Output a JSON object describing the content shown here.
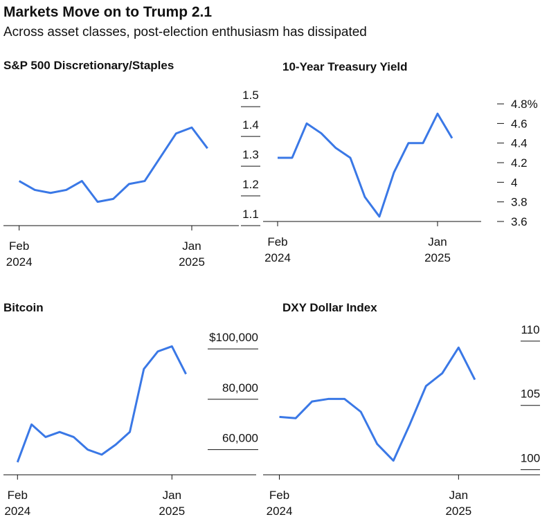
{
  "title": "Markets Move on to Trump 2.1",
  "subtitle": "Across asset classes, post-election enthusiasm has dissipated",
  "chart_data": [
    {
      "type": "line",
      "title": "S&P 500 Discretionary/Staples",
      "color": "#3a78e6",
      "x": [
        "2024-02",
        "2024-03",
        "2024-04",
        "2024-05",
        "2024-06",
        "2024-07",
        "2024-08",
        "2024-09",
        "2024-10",
        "2024-11",
        "2024-12",
        "2025-01",
        "2025-02"
      ],
      "values": [
        1.25,
        1.22,
        1.21,
        1.22,
        1.25,
        1.18,
        1.19,
        1.24,
        1.25,
        1.33,
        1.41,
        1.43,
        1.36
      ],
      "xlim": [
        "2024-01",
        "2025-04"
      ],
      "xticks": [
        {
          "value": "2024-02",
          "label": [
            "Feb",
            "2024"
          ]
        },
        {
          "value": "2025-01",
          "label": [
            "Jan",
            "2025"
          ]
        }
      ],
      "ylim": [
        1.1,
        1.54
      ],
      "yticks": [
        1.1,
        1.2,
        1.3,
        1.4,
        1.5
      ]
    },
    {
      "type": "line",
      "title": "10-Year Treasury Yield",
      "color": "#3a78e6",
      "x": [
        "2024-02",
        "2024-03",
        "2024-04",
        "2024-05",
        "2024-06",
        "2024-07",
        "2024-08",
        "2024-09",
        "2024-10",
        "2024-11",
        "2024-12",
        "2025-01",
        "2025-02"
      ],
      "values": [
        4.25,
        4.25,
        4.6,
        4.5,
        4.35,
        4.25,
        3.85,
        3.65,
        4.1,
        4.4,
        4.4,
        4.7,
        4.45
      ],
      "xlim": [
        "2024-01",
        "2025-04"
      ],
      "xticks": [
        {
          "value": "2024-02",
          "label": [
            "Feb",
            "2024"
          ]
        },
        {
          "value": "2025-01",
          "label": [
            "Jan",
            "2025"
          ]
        }
      ],
      "ylim": [
        3.6,
        4.85
      ],
      "yticks": [
        3.6,
        3.8,
        4.0,
        4.2,
        4.4,
        4.6,
        {
          "value": 4.8,
          "label": "4.8%"
        }
      ]
    },
    {
      "type": "line",
      "title": "Bitcoin",
      "color": "#3a78e6",
      "x": [
        "2024-02",
        "2024-03",
        "2024-04",
        "2024-05",
        "2024-06",
        "2024-07",
        "2024-08",
        "2024-09",
        "2024-10",
        "2024-11",
        "2024-12",
        "2025-01",
        "2025-02"
      ],
      "values": [
        55000,
        70000,
        65000,
        67000,
        65000,
        60000,
        58000,
        62000,
        67000,
        92000,
        99000,
        101000,
        90000
      ],
      "xlim": [
        "2024-01",
        "2025-07"
      ],
      "xticks": [
        {
          "value": "2024-02",
          "label": [
            "Feb",
            "2024"
          ]
        },
        {
          "value": "2025-01",
          "label": [
            "Jan",
            "2025"
          ]
        }
      ],
      "ylim": [
        50000,
        108000
      ],
      "yticks": [
        {
          "value": 60000,
          "label": "60,000"
        },
        {
          "value": 80000,
          "label": "80,000"
        },
        {
          "value": 100000,
          "label": "$100,000"
        }
      ]
    },
    {
      "type": "line",
      "title": "DXY Dollar Index",
      "color": "#3a78e6",
      "x": [
        "2024-02",
        "2024-03",
        "2024-04",
        "2024-05",
        "2024-06",
        "2024-07",
        "2024-08",
        "2024-09",
        "2024-10",
        "2024-11",
        "2024-12",
        "2025-01",
        "2025-02"
      ],
      "values": [
        104.1,
        104.0,
        105.3,
        105.5,
        105.5,
        104.5,
        102.0,
        100.7,
        103.5,
        106.5,
        107.5,
        109.5,
        107.0
      ],
      "xlim": [
        "2024-01",
        "2025-06"
      ],
      "xticks": [
        {
          "value": "2024-02",
          "label": [
            "Feb",
            "2024"
          ]
        },
        {
          "value": "2025-01",
          "label": [
            "Jan",
            "2025"
          ]
        }
      ],
      "ylim": [
        99.6,
        110.8
      ],
      "yticks": [
        100,
        105,
        110
      ]
    }
  ]
}
